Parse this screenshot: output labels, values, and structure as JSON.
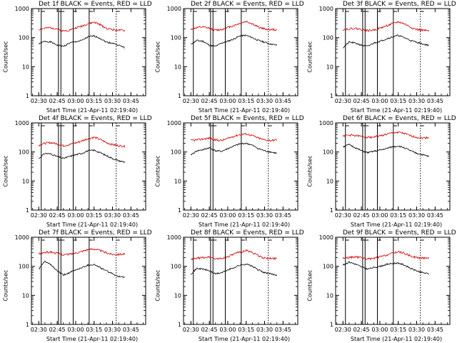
{
  "colors": {
    "events": "#000000",
    "lld": "#d40000",
    "axis": "#000000"
  },
  "shared": {
    "xlabel": "Start Time (21-Apr-11 02:19:40)",
    "ylabel": "Counts/sec",
    "xticks": [
      "02:30",
      "02:45",
      "03:00",
      "03:15",
      "03:30",
      "03:45"
    ],
    "yticks": [
      "1",
      "10",
      "100",
      "1000"
    ]
  },
  "chart_data": [
    {
      "type": "line",
      "title": "Det 1f BLACK = Events, RED = LLD",
      "xlabel": "Start Time (21-Apr-11 02:19:40)",
      "ylabel": "Counts/sec",
      "x_range": [
        "02:24",
        "03:57"
      ],
      "y_scale": "log",
      "ylim": [
        1,
        1000
      ],
      "x": [
        "02:30",
        "02:35",
        "02:40",
        "02:45",
        "02:50",
        "02:55",
        "03:00",
        "03:05",
        "03:10",
        "03:15",
        "03:20",
        "03:25",
        "03:30",
        "03:35",
        "03:40"
      ],
      "series": [
        {
          "name": "Events",
          "values": [
            60,
            75,
            70,
            55,
            50,
            65,
            72,
            80,
            105,
            115,
            95,
            70,
            65,
            55,
            45
          ]
        },
        {
          "name": "LLD",
          "values": [
            190,
            210,
            220,
            200,
            170,
            185,
            215,
            250,
            300,
            340,
            280,
            210,
            190,
            180,
            175
          ]
        }
      ],
      "markers": [
        "02:32",
        "02:46",
        "02:48",
        "02:58",
        "03:11",
        "03:33"
      ]
    },
    {
      "type": "line",
      "title": "Det 2f BLACK = Events, RED = LLD",
      "xlabel": "Start Time (21-Apr-11 02:19:40)",
      "ylabel": "Counts/sec",
      "x_range": [
        "02:24",
        "03:57"
      ],
      "y_scale": "log",
      "ylim": [
        1,
        1000
      ],
      "x": [
        "02:30",
        "02:35",
        "02:40",
        "02:45",
        "02:50",
        "02:55",
        "03:00",
        "03:05",
        "03:10",
        "03:15",
        "03:20",
        "03:25",
        "03:30",
        "03:35",
        "03:40"
      ],
      "series": [
        {
          "name": "Events",
          "values": [
            60,
            80,
            75,
            55,
            50,
            65,
            75,
            90,
            115,
            120,
            100,
            80,
            70,
            60,
            55
          ]
        },
        {
          "name": "LLD",
          "values": [
            200,
            220,
            230,
            210,
            180,
            190,
            225,
            260,
            310,
            360,
            300,
            230,
            200,
            190,
            185
          ]
        }
      ],
      "markers": [
        "02:32",
        "02:46",
        "02:48",
        "02:58",
        "03:11",
        "03:33"
      ]
    },
    {
      "type": "line",
      "title": "Det 3f BLACK = Events, RED = LLD",
      "xlabel": "Start Time (21-Apr-11 02:19:40)",
      "ylabel": "Counts/sec",
      "x_range": [
        "02:24",
        "03:57"
      ],
      "y_scale": "log",
      "ylim": [
        1,
        1000
      ],
      "x": [
        "02:30",
        "02:35",
        "02:40",
        "02:45",
        "02:50",
        "02:55",
        "03:00",
        "03:05",
        "03:10",
        "03:15",
        "03:20",
        "03:25",
        "03:30",
        "03:35",
        "03:40"
      ],
      "series": [
        {
          "name": "Events",
          "values": [
            45,
            70,
            65,
            55,
            50,
            65,
            75,
            90,
            105,
            120,
            100,
            80,
            70,
            60,
            55
          ]
        },
        {
          "name": "LLD",
          "values": [
            190,
            200,
            210,
            190,
            175,
            185,
            210,
            250,
            300,
            350,
            300,
            230,
            190,
            180,
            170
          ]
        }
      ],
      "markers": [
        "02:32",
        "02:46",
        "02:48",
        "02:58",
        "03:11",
        "03:33"
      ]
    },
    {
      "type": "line",
      "title": "Det 4f BLACK = Events, RED = LLD",
      "xlabel": "Start Time (21-Apr-11 02:19:40)",
      "ylabel": "Counts/sec",
      "x_range": [
        "02:24",
        "03:57"
      ],
      "y_scale": "log",
      "ylim": [
        1,
        1000
      ],
      "x": [
        "02:30",
        "02:35",
        "02:40",
        "02:45",
        "02:50",
        "02:55",
        "03:00",
        "03:05",
        "03:10",
        "03:15",
        "03:20",
        "03:25",
        "03:30",
        "03:35",
        "03:40"
      ],
      "series": [
        {
          "name": "Events",
          "values": [
            60,
            90,
            85,
            70,
            60,
            70,
            80,
            90,
            110,
            115,
            95,
            75,
            60,
            50,
            45
          ]
        },
        {
          "name": "LLD",
          "values": [
            170,
            200,
            210,
            190,
            165,
            180,
            205,
            240,
            290,
            320,
            270,
            210,
            180,
            165,
            155
          ]
        }
      ],
      "markers": [
        "02:32",
        "02:46",
        "02:48",
        "02:58",
        "03:11",
        "03:33"
      ]
    },
    {
      "type": "line",
      "title": "Det 5f BLACK = Events, RED = LLD",
      "xlabel": "Start Time (21-Apr-11 02:19:40)",
      "ylabel": "Counts/sec",
      "x_range": [
        "02:24",
        "03:57"
      ],
      "y_scale": "log",
      "ylim": [
        1,
        1000
      ],
      "x": [
        "02:30",
        "02:35",
        "02:40",
        "02:45",
        "02:50",
        "02:55",
        "03:00",
        "03:05",
        "03:10",
        "03:15",
        "03:20",
        "03:25",
        "03:30",
        "03:35",
        "03:40"
      ],
      "series": [
        {
          "name": "Events",
          "values": [
            80,
            110,
            120,
            140,
            110,
            105,
            130,
            160,
            190,
            200,
            170,
            130,
            110,
            100,
            90
          ]
        },
        {
          "name": "LLD",
          "values": [
            250,
            260,
            280,
            300,
            260,
            250,
            290,
            350,
            400,
            420,
            370,
            300,
            260,
            250,
            260
          ]
        }
      ],
      "markers": [
        "02:46",
        "02:48",
        "03:11",
        "03:33"
      ]
    },
    {
      "type": "line",
      "title": "Det 6f BLACK = Events, RED = LLD",
      "xlabel": "Start Time (21-Apr-11 02:19:40)",
      "ylabel": "Counts/sec",
      "x_range": [
        "02:24",
        "03:57"
      ],
      "y_scale": "log",
      "ylim": [
        1,
        1000
      ],
      "x": [
        "02:30",
        "02:35",
        "02:40",
        "02:45",
        "02:50",
        "02:55",
        "03:00",
        "03:05",
        "03:10",
        "03:15",
        "03:20",
        "03:25",
        "03:30",
        "03:35",
        "03:40"
      ],
      "series": [
        {
          "name": "Events",
          "values": [
            150,
            180,
            140,
            110,
            95,
            105,
            115,
            130,
            150,
            160,
            140,
            110,
            90,
            80,
            70
          ]
        },
        {
          "name": "LLD",
          "values": [
            350,
            380,
            370,
            340,
            320,
            330,
            360,
            400,
            450,
            480,
            430,
            360,
            320,
            300,
            320
          ]
        }
      ],
      "markers": [
        "02:32",
        "02:46",
        "02:48",
        "02:58",
        "03:11",
        "03:33"
      ]
    },
    {
      "type": "line",
      "title": "Det 7f BLACK = Events, RED = LLD",
      "xlabel": "Start Time (21-Apr-11 02:19:40)",
      "ylabel": "Counts/sec",
      "x_range": [
        "02:24",
        "03:57"
      ],
      "y_scale": "log",
      "ylim": [
        1,
        1000
      ],
      "x": [
        "02:30",
        "02:35",
        "02:40",
        "02:45",
        "02:50",
        "02:55",
        "03:00",
        "03:05",
        "03:10",
        "03:15",
        "03:20",
        "03:25",
        "03:30",
        "03:35",
        "03:40"
      ],
      "series": [
        {
          "name": "Events",
          "values": [
            80,
            150,
            110,
            70,
            50,
            60,
            75,
            90,
            110,
            115,
            90,
            70,
            55,
            45,
            40
          ]
        },
        {
          "name": "LLD",
          "values": [
            270,
            300,
            310,
            280,
            250,
            260,
            290,
            330,
            380,
            400,
            350,
            290,
            260,
            260,
            270
          ]
        }
      ],
      "markers": [
        "02:32",
        "02:46",
        "02:48",
        "02:58",
        "03:11",
        "03:33"
      ]
    },
    {
      "type": "line",
      "title": "Det 8f BLACK = Events, RED = LLD",
      "xlabel": "Start Time (21-Apr-11 02:19:40)",
      "ylabel": "Counts/sec",
      "x_range": [
        "02:24",
        "03:57"
      ],
      "y_scale": "log",
      "ylim": [
        1,
        1000
      ],
      "x": [
        "02:30",
        "02:35",
        "02:40",
        "02:45",
        "02:50",
        "02:55",
        "03:00",
        "03:05",
        "03:10",
        "03:15",
        "03:20",
        "03:25",
        "03:30",
        "03:35",
        "03:40"
      ],
      "series": [
        {
          "name": "Events",
          "values": [
            55,
            85,
            80,
            70,
            55,
            60,
            75,
            90,
            110,
            120,
            100,
            75,
            60,
            55,
            50
          ]
        },
        {
          "name": "LLD",
          "values": [
            170,
            190,
            200,
            210,
            180,
            185,
            215,
            260,
            310,
            350,
            300,
            230,
            190,
            185,
            190
          ]
        }
      ],
      "markers": [
        "02:32",
        "02:46",
        "02:48",
        "02:58",
        "03:11",
        "03:33"
      ]
    },
    {
      "type": "line",
      "title": "Det 9f BLACK = Events, RED = LLD",
      "xlabel": "Start Time (21-Apr-11 02:19:40)",
      "ylabel": "Counts/sec",
      "x_range": [
        "02:24",
        "03:57"
      ],
      "y_scale": "log",
      "ylim": [
        1,
        1000
      ],
      "x": [
        "02:30",
        "02:35",
        "02:40",
        "02:45",
        "02:50",
        "02:55",
        "03:00",
        "03:05",
        "03:10",
        "03:15",
        "03:20",
        "03:25",
        "03:30",
        "03:35",
        "03:40"
      ],
      "series": [
        {
          "name": "Events",
          "values": [
            110,
            140,
            120,
            95,
            80,
            90,
            100,
            115,
            125,
            130,
            110,
            85,
            70,
            60,
            55
          ]
        },
        {
          "name": "LLD",
          "values": [
            190,
            200,
            210,
            200,
            180,
            185,
            210,
            240,
            280,
            320,
            280,
            230,
            200,
            190,
            200
          ]
        }
      ],
      "markers": [
        "02:32",
        "02:46",
        "02:48",
        "02:58",
        "03:11",
        "03:33"
      ]
    }
  ]
}
